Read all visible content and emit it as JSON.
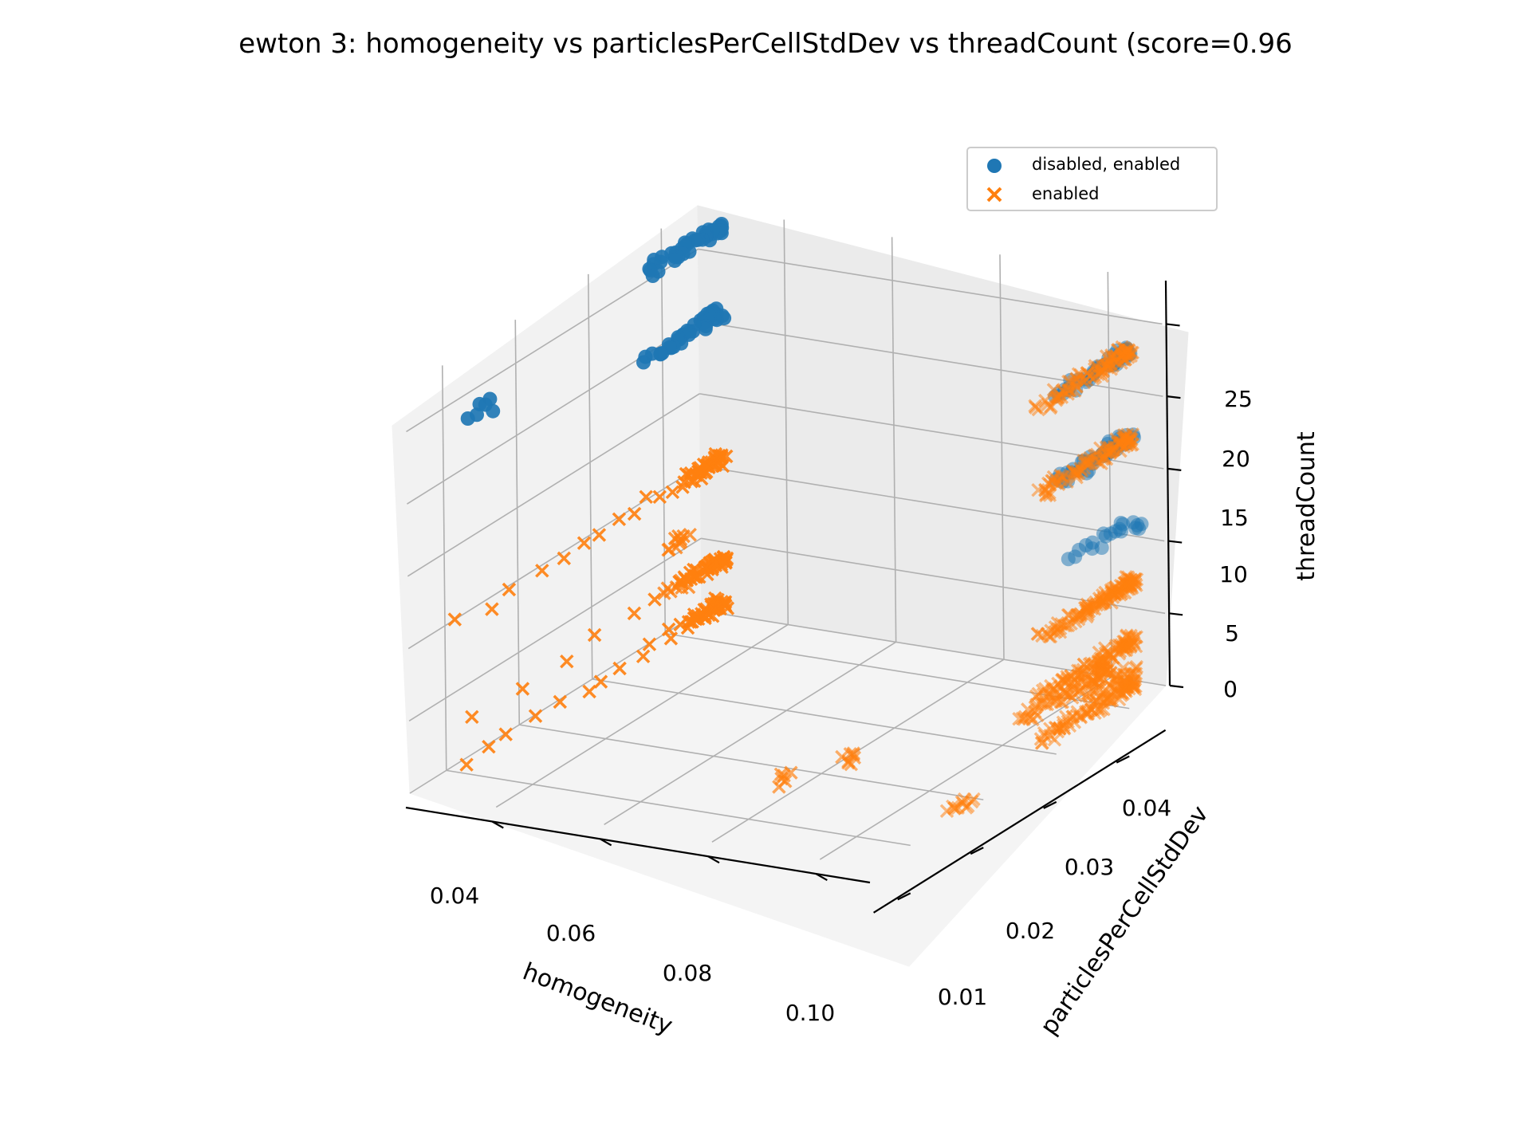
{
  "chart_data": {
    "type": "scatter",
    "projection": "3d",
    "title": "ewton 3: homogeneity vs particlesPerCellStdDev vs threadCount (score=0.96",
    "xlabel": "homogeneity",
    "ylabel": "particlesPerCellStdDev",
    "zlabel": "threadCount",
    "xlim": [
      0.03,
      0.11
    ],
    "ylim": [
      0.005,
      0.048
    ],
    "zlim": [
      0,
      28
    ],
    "x_ticks": [
      "0.04",
      "0.06",
      "0.08",
      "0.10"
    ],
    "y_ticks": [
      "0.01",
      "0.02",
      "0.03",
      "0.04"
    ],
    "z_ticks": [
      "0",
      "5",
      "10",
      "15",
      "20",
      "25"
    ],
    "grid": true,
    "legend_position": "top-right",
    "colors": {
      "series_1": "#1f77b4",
      "series_2": "#ff7f0e"
    },
    "series": [
      {
        "name": "disabled, enabled",
        "marker": "circle",
        "color": "#1f77b4",
        "clusters": [
          {
            "x": [
              0.036,
              0.056
            ],
            "y": 0.006,
            "z": 24,
            "n": 40
          },
          {
            "x": [
              0.036,
              0.056
            ],
            "y": 0.006,
            "z": 18,
            "n": 40
          },
          {
            "x": [
              0.035,
              0.052
            ],
            "y": 0.006,
            "z": 12,
            "n": 20
          },
          {
            "x": [
              0.036,
              0.056
            ],
            "y": 0.044,
            "z": 28,
            "n": 40
          },
          {
            "x": [
              0.036,
              0.056
            ],
            "y": 0.044,
            "z": 22,
            "n": 40
          },
          {
            "x": [
              0.095,
              0.101
            ],
            "y": 0.045,
            "z": 25,
            "n": 6
          }
        ]
      },
      {
        "name": "enabled",
        "marker": "x",
        "color": "#ff7f0e",
        "clusters": [
          {
            "x": [
              0.036,
              0.061
            ],
            "y": 0.006,
            "z": 24,
            "n": 90
          },
          {
            "x": [
              0.036,
              0.061
            ],
            "y": 0.006,
            "z": 18,
            "n": 90
          },
          {
            "x": [
              0.036,
              0.061
            ],
            "y": 0.006,
            "z": 8,
            "n": 90
          },
          {
            "x": [
              0.036,
              0.061
            ],
            "y": 0.006,
            "z": 4,
            "n": 90
          },
          {
            "x": [
              0.036,
              0.061
            ],
            "y": 0.006,
            "z": 1,
            "n": 90
          },
          {
            "x": [
              0.037,
              0.061
            ],
            "y": 0.008,
            "z": 2,
            "n": 70
          },
          {
            "x": [
              0.036,
              0.049
            ],
            "y": 0.006,
            "z": 2,
            "n": 25
          },
          {
            "x": [
              0.036,
              0.05
            ],
            "y": 0.006,
            "z": 8,
            "n": 25
          },
          {
            "x": [
              0.081,
              0.086
            ],
            "y": 0.006,
            "z": 0,
            "n": 12
          },
          {
            "x": [
              0.082,
              0.086
            ],
            "y": 0.016,
            "z": 2,
            "n": 8
          },
          {
            "x": [
              0.083,
              0.086
            ],
            "y": 0.022,
            "z": 0,
            "n": 6
          },
          {
            "x": [
              0.081,
              0.086
            ],
            "y": 0.032,
            "z": 15,
            "n": 10
          },
          {
            "x": [
              0.081,
              0.086
            ],
            "y": 0.032,
            "z": 12,
            "n": 10
          },
          {
            "x": [
              0.036,
              0.045
            ],
            "y": 0.044,
            "z": 12,
            "n": 40
          },
          {
            "x": [
              0.036,
              0.045
            ],
            "y": 0.044,
            "z": 5,
            "n": 40
          },
          {
            "x": [
              0.036,
              0.045
            ],
            "y": 0.044,
            "z": 2,
            "n": 40
          },
          {
            "x": [
              0.046,
              0.108
            ],
            "y": 0.044,
            "z": 12,
            "n": 14
          },
          {
            "x": [
              0.046,
              0.104
            ],
            "y": 0.044,
            "z": 5,
            "n": 8
          },
          {
            "x": [
              0.046,
              0.108
            ],
            "y": 0.044,
            "z": 2,
            "n": 14
          }
        ]
      }
    ]
  }
}
